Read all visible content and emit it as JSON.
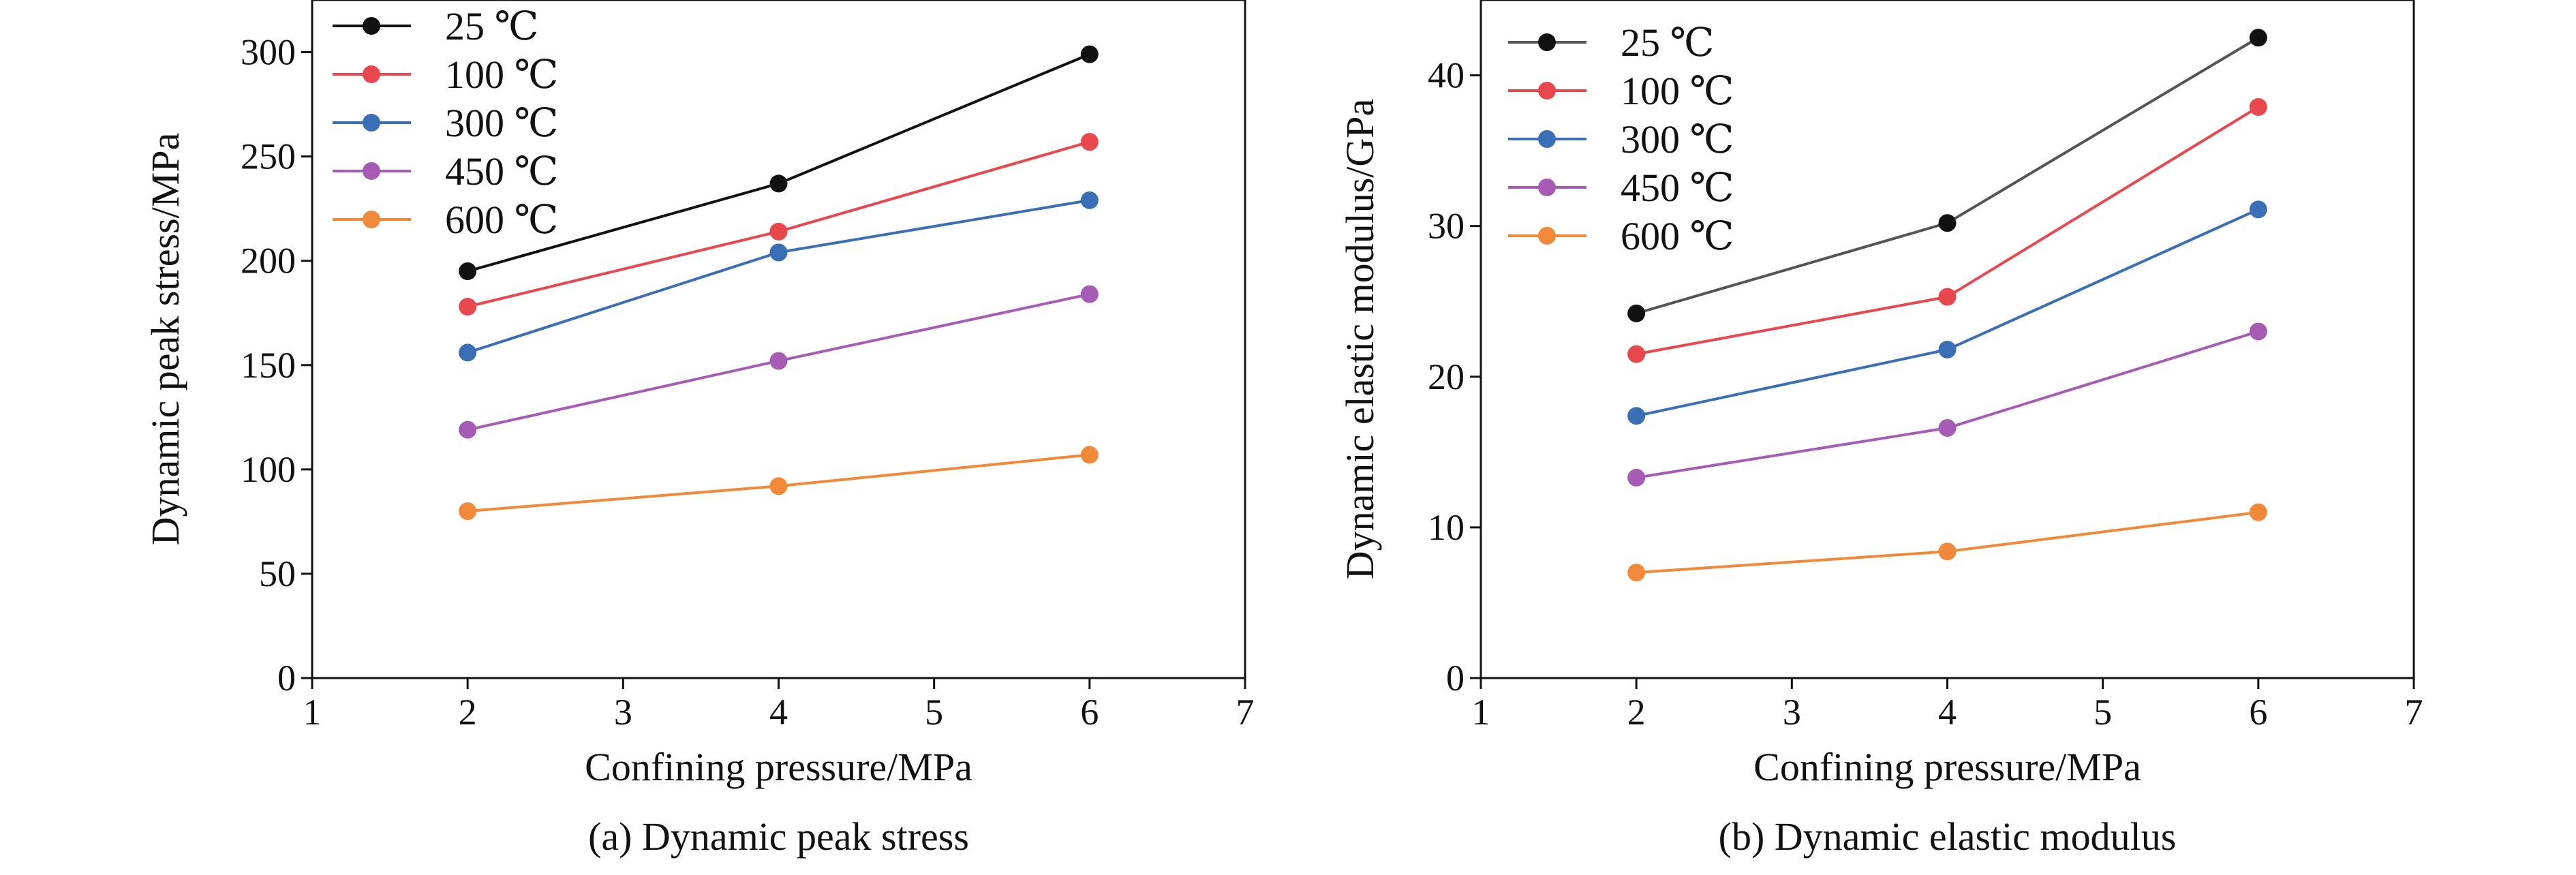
{
  "chart_data": [
    {
      "type": "line",
      "caption": "(a) Dynamic peak stress",
      "xlabel": "Confining pressure/MPa",
      "ylabel": "Dynamic peak stress/MPa",
      "xlim": [
        1,
        7
      ],
      "ylim": [
        0,
        325
      ],
      "x_ticks": [
        1,
        2,
        3,
        4,
        5,
        6,
        7
      ],
      "y_ticks": [
        0,
        50,
        100,
        150,
        200,
        250,
        300
      ],
      "grid": false,
      "legend_position": "top-left",
      "x": [
        2,
        4,
        6
      ],
      "series": [
        {
          "name": "25 ℃",
          "color": "#111111",
          "values": [
            195,
            237,
            299
          ]
        },
        {
          "name": "100 ℃",
          "color": "#e8474e",
          "values": [
            178,
            214,
            257
          ]
        },
        {
          "name": "300 ℃",
          "color": "#3a6fb8",
          "values": [
            156,
            204,
            229
          ]
        },
        {
          "name": "450 ℃",
          "color": "#a65cb5",
          "values": [
            119,
            152,
            184
          ]
        },
        {
          "name": "600 ℃",
          "color": "#f08a3a",
          "values": [
            80,
            92,
            107
          ]
        }
      ]
    },
    {
      "type": "line",
      "caption": "(b) Dynamic elastic modulus",
      "xlabel": "Confining pressure/MPa",
      "ylabel": "Dynamic elastic modulus/GPa",
      "xlim": [
        1,
        7
      ],
      "ylim": [
        0,
        45
      ],
      "x_ticks": [
        1,
        2,
        3,
        4,
        5,
        6,
        7
      ],
      "y_ticks": [
        0,
        10,
        20,
        30,
        40
      ],
      "grid": false,
      "legend_position": "top-left",
      "x": [
        2,
        4,
        6
      ],
      "series": [
        {
          "name": "25 ℃",
          "color": "#555555",
          "marker_color": "#111111",
          "values": [
            24.2,
            30.2,
            42.5
          ]
        },
        {
          "name": "100 ℃",
          "color": "#e8474e",
          "values": [
            21.5,
            25.3,
            37.9
          ]
        },
        {
          "name": "300 ℃",
          "color": "#3a6fb8",
          "values": [
            17.4,
            21.8,
            31.1
          ]
        },
        {
          "name": "450 ℃",
          "color": "#a65cb5",
          "values": [
            13.3,
            16.6,
            23.0
          ]
        },
        {
          "name": "600 ℃",
          "color": "#f08a3a",
          "values": [
            7.0,
            8.4,
            11.0
          ]
        }
      ]
    }
  ]
}
